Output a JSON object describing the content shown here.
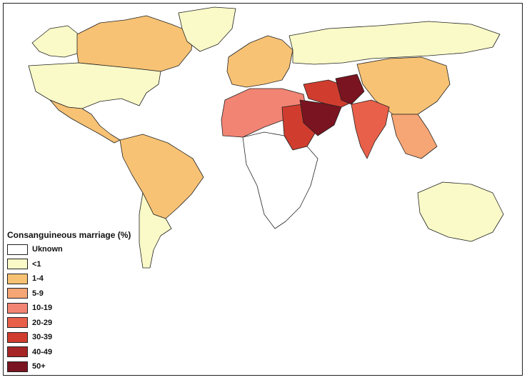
{
  "legend": {
    "title": "Consanguineous marriage (%)",
    "items": [
      {
        "label": "Uknown",
        "color": "#ffffff"
      },
      {
        "label": "<1",
        "color": "#fafac8"
      },
      {
        "label": "1-4",
        "color": "#f7c274"
      },
      {
        "label": "5-9",
        "color": "#f6a574"
      },
      {
        "label": "10-19",
        "color": "#f28474"
      },
      {
        "label": "20-29",
        "color": "#e9604a"
      },
      {
        "label": "30-39",
        "color": "#d03d2e"
      },
      {
        "label": "40-49",
        "color": "#a62525"
      },
      {
        "label": "50+",
        "color": "#7a1420"
      }
    ]
  },
  "regions": [
    {
      "name": "canada",
      "color": "#f7c274"
    },
    {
      "name": "alaska",
      "color": "#fafac8"
    },
    {
      "name": "greenland",
      "color": "#fafac8"
    },
    {
      "name": "usa",
      "color": "#fafac8"
    },
    {
      "name": "mexico",
      "color": "#f7c274"
    },
    {
      "name": "south-america",
      "color": "#f7c274"
    },
    {
      "name": "southern-cone",
      "color": "#fafac8"
    },
    {
      "name": "western-europe",
      "color": "#f7c274"
    },
    {
      "name": "russia",
      "color": "#fafac8"
    },
    {
      "name": "china",
      "color": "#f7c274"
    },
    {
      "name": "north-africa",
      "color": "#f28474"
    },
    {
      "name": "sudan",
      "color": "#d03d2e"
    },
    {
      "name": "arabia",
      "color": "#7a1420"
    },
    {
      "name": "middle-east",
      "color": "#d03d2e"
    },
    {
      "name": "pakistan",
      "color": "#7a1420"
    },
    {
      "name": "india",
      "color": "#e9604a"
    },
    {
      "name": "southeast-asia",
      "color": "#f6a574"
    },
    {
      "name": "central-africa",
      "color": "#ffffff"
    },
    {
      "name": "australia",
      "color": "#fafac8"
    }
  ]
}
